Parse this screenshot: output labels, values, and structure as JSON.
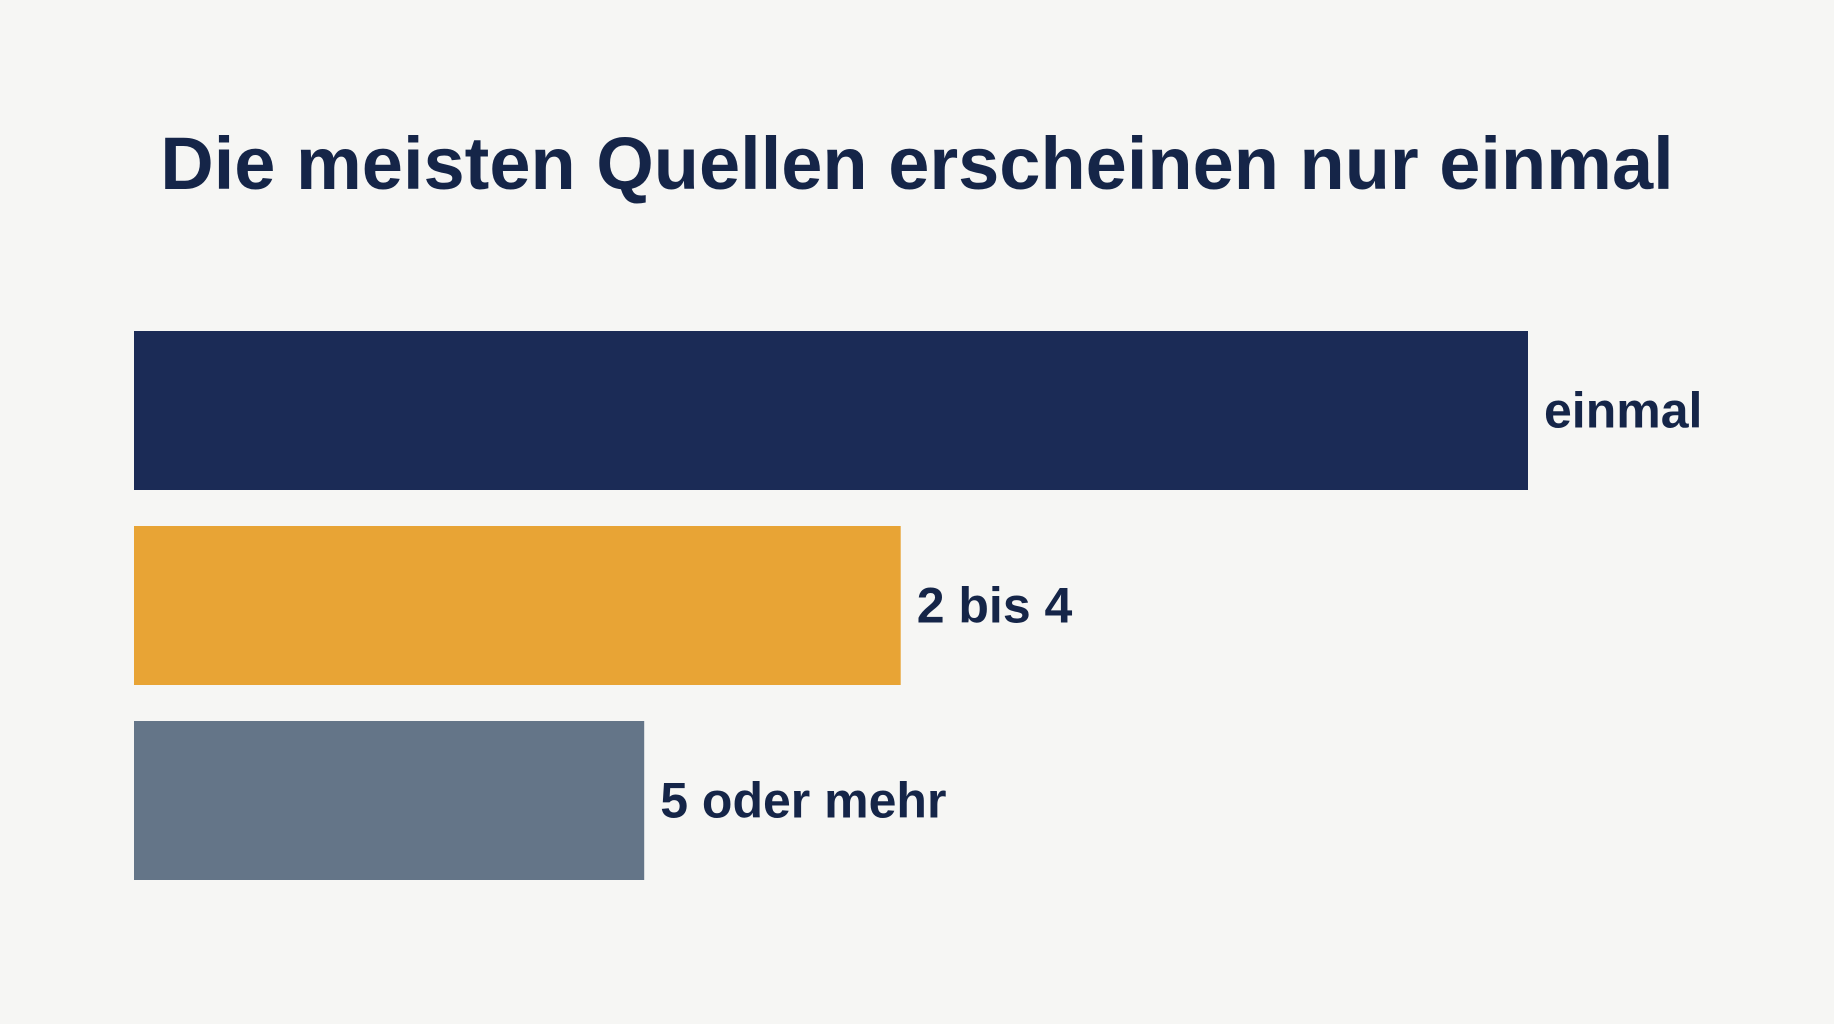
{
  "chart_data": {
    "type": "bar",
    "orientation": "horizontal",
    "title": "Die meisten Quellen erscheinen nur einmal",
    "categories": [
      "einmal",
      "2 bis 4",
      "5 oder mehr"
    ],
    "values": [
      100,
      55,
      36.6
    ],
    "colors": [
      "#1b2b56",
      "#e8a435",
      "#647588"
    ],
    "label_color": "#152548",
    "xlim": [
      0,
      100
    ],
    "axes_visible": false,
    "grid": false,
    "legend": "none",
    "value_labels": false
  }
}
